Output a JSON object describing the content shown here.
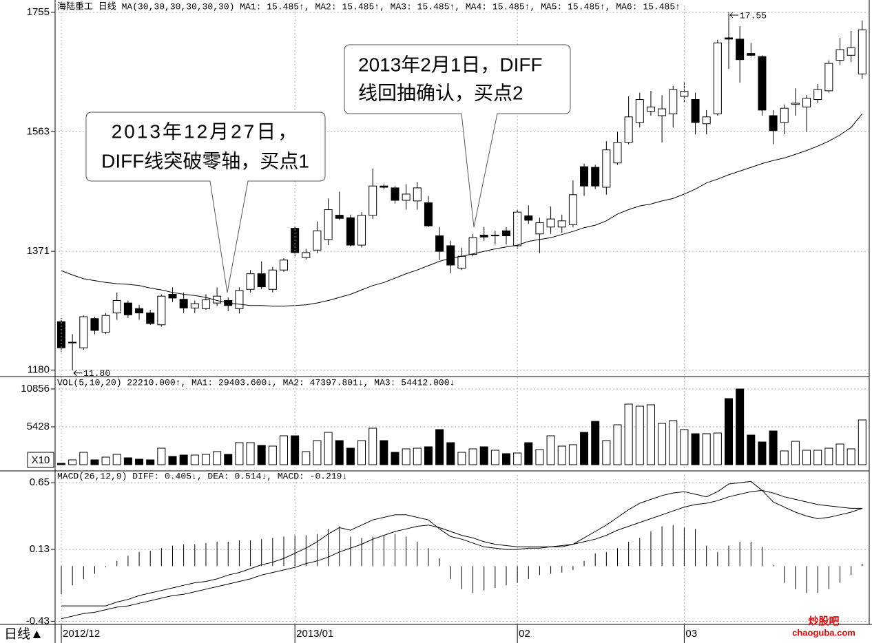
{
  "chart_data": [
    {
      "type": "candlestick",
      "header": "海陆重工 日线 MA(30,30,30,30,30,30) MA1: 15.485↑, MA2: 15.485↑, MA3: 15.485↑, MA4: 15.485↑, MA5: 15.485↑, MA6: 15.485↑",
      "categories": [
        "2012/12",
        null,
        null,
        null,
        null,
        null,
        null,
        null,
        null,
        null,
        null,
        null,
        null,
        null,
        null,
        null,
        null,
        null,
        null,
        null,
        null,
        "2013/01",
        null,
        null,
        null,
        null,
        null,
        null,
        null,
        null,
        null,
        null,
        null,
        null,
        null,
        null,
        null,
        null,
        null,
        null,
        null,
        "02",
        null,
        null,
        null,
        null,
        null,
        null,
        null,
        null,
        null,
        null,
        null,
        null,
        null,
        null,
        "03",
        null,
        null,
        null,
        null,
        null,
        null,
        null,
        null,
        null,
        null,
        null,
        null,
        null,
        null,
        null,
        null
      ],
      "open": [
        1258,
        1225,
        1216,
        1263,
        1241,
        1272,
        1288,
        1279,
        1272,
        1253,
        1302,
        1294,
        1280,
        1279,
        1288,
        1292,
        1279,
        1310,
        1335,
        1310,
        1341,
        1408,
        1361,
        1373,
        1390,
        1429,
        1425,
        1381,
        1429,
        1476,
        1473,
        1453,
        1452,
        1449,
        1396,
        1380,
        1344,
        1366,
        1397,
        1397,
        1404,
        1380,
        1428,
        1399,
        1410,
        1410,
        1414,
        1507,
        1506,
        1474,
        1513,
        1546,
        1578,
        1596,
        1589,
        1592,
        1620,
        1615,
        1576,
        1592,
        1714,
        1712,
        1689,
        1684,
        1589,
        1578,
        1607,
        1603,
        1615,
        1629,
        1678,
        1686,
        1656
      ],
      "high": [
        1264,
        1238,
        1268,
        1266,
        1272,
        1305,
        1292,
        1285,
        1277,
        1302,
        1313,
        1305,
        1292,
        1302,
        1313,
        1297,
        1313,
        1341,
        1355,
        1346,
        1360,
        1412,
        1375,
        1419,
        1456,
        1467,
        1430,
        1434,
        1504,
        1479,
        1476,
        1479,
        1482,
        1460,
        1410,
        1388,
        1377,
        1399,
        1410,
        1404,
        1410,
        1438,
        1445,
        1425,
        1443,
        1430,
        1485,
        1512,
        1510,
        1548,
        1563,
        1620,
        1626,
        1629,
        1622,
        1637,
        1644,
        1626,
        1598,
        1711,
        1755,
        1733,
        1706,
        1686,
        1598,
        1607,
        1633,
        1622,
        1640,
        1678,
        1714,
        1725,
        1742
      ],
      "low": [
        1209,
        1180,
        1213,
        1238,
        1238,
        1261,
        1264,
        1261,
        1253,
        1250,
        1290,
        1272,
        1272,
        1277,
        1283,
        1275,
        1271,
        1305,
        1310,
        1305,
        1338,
        1363,
        1358,
        1368,
        1381,
        1421,
        1379,
        1377,
        1423,
        1471,
        1448,
        1438,
        1438,
        1410,
        1357,
        1336,
        1341,
        1363,
        1388,
        1382,
        1382,
        1375,
        1415,
        1368,
        1399,
        1401,
        1410,
        1460,
        1471,
        1462,
        1510,
        1543,
        1570,
        1589,
        1546,
        1570,
        1611,
        1559,
        1559,
        1589,
        1664,
        1642,
        1684,
        1589,
        1543,
        1559,
        1589,
        1563,
        1609,
        1626,
        1670,
        1675,
        1648
      ],
      "close": [
        1216,
        1225,
        1266,
        1244,
        1268,
        1292,
        1269,
        1272,
        1255,
        1299,
        1296,
        1280,
        1287,
        1293,
        1299,
        1284,
        1308,
        1335,
        1314,
        1341,
        1357,
        1369,
        1369,
        1404,
        1438,
        1424,
        1381,
        1429,
        1476,
        1474,
        1453,
        1463,
        1473,
        1412,
        1371,
        1349,
        1363,
        1393,
        1394,
        1397,
        1396,
        1434,
        1421,
        1417,
        1423,
        1420,
        1462,
        1476,
        1476,
        1534,
        1546,
        1587,
        1615,
        1603,
        1600,
        1631,
        1628,
        1578,
        1587,
        1706,
        1712,
        1679,
        1686,
        1598,
        1565,
        1601,
        1609,
        1617,
        1631,
        1673,
        1695,
        1698,
        1727
      ],
      "up_color": "#ffffff",
      "down_color": "#000000",
      "ma": {
        "color": "#000000",
        "values": [
          1340,
          1333,
          1327,
          1324,
          1321,
          1319,
          1318,
          1316,
          1312,
          1309,
          1305,
          1302,
          1300,
          1297,
          1292,
          1288,
          1286,
          1284,
          1284,
          1283,
          1283,
          1284,
          1285,
          1288,
          1292,
          1297,
          1302,
          1309,
          1316,
          1321,
          1328,
          1335,
          1341,
          1348,
          1355,
          1360,
          1363,
          1367,
          1371,
          1375,
          1378,
          1381,
          1387,
          1390,
          1393,
          1398,
          1403,
          1409,
          1413,
          1420,
          1431,
          1438,
          1444,
          1447,
          1452,
          1456,
          1463,
          1471,
          1481,
          1487,
          1494,
          1500,
          1506,
          1512,
          1517,
          1521,
          1527,
          1533,
          1540,
          1548,
          1558,
          1570,
          1592
        ]
      },
      "ylim": [
        1172,
        1766
      ],
      "yticks": [
        1180,
        1371,
        1563,
        1755
      ],
      "grid": true,
      "annotations": [
        {
          "label": "17.55",
          "index": 60,
          "value": 1755
        },
        {
          "label": "11.80",
          "index": 1,
          "value": 1180
        }
      ],
      "callouts": [
        {
          "lines": [
            "2013年12月27日，",
            "DIFF线突破零轴，买点1"
          ]
        },
        {
          "lines": [
            "2013年2月1日，DIFF",
            "线回抽确认，买点2"
          ]
        }
      ]
    },
    {
      "type": "volume",
      "header": "VOL(5,10,20) 22210.000↑, MA1: 29403.600↓, MA2: 47397.801↓, MA3: 54412.000↓",
      "multiplier": "X10",
      "values": [
        197,
        691,
        1777,
        691,
        1086,
        1481,
        987,
        790,
        691,
        2369,
        1184,
        1382,
        1382,
        1481,
        1875,
        1481,
        3158,
        3158,
        2764,
        2666,
        4145,
        4145,
        1875,
        3455,
        4639,
        3455,
        2369,
        3455,
        5231,
        3455,
        1777,
        2270,
        2369,
        2566,
        5034,
        3158,
        1777,
        2270,
        2566,
        2073,
        1579,
        1678,
        3158,
        2171,
        4145,
        2665,
        2862,
        4639,
        6218,
        3455,
        5725,
        8686,
        8390,
        8587,
        5922,
        6317,
        5034,
        4442,
        4442,
        4540,
        9475,
        10857,
        4244,
        3257,
        4836,
        1974,
        3356,
        2073,
        2073,
        2369,
        2961,
        2270,
        6416
      ],
      "ylim": [
        -790,
        12535
      ],
      "yticks": [
        5428,
        10856
      ],
      "grid": true
    },
    {
      "type": "macd",
      "header": "MACD(26,12,9) DIFF: 0.405↓, DEA: 0.514↓, MACD: -0.219↓",
      "diff": [
        -0.31,
        -0.31,
        -0.31,
        -0.31,
        -0.31,
        -0.28,
        -0.26,
        -0.23,
        -0.21,
        -0.19,
        -0.17,
        -0.15,
        -0.13,
        -0.12,
        -0.1,
        -0.07,
        -0.05,
        -0.02,
        0.01,
        0.03,
        0.06,
        0.1,
        0.14,
        0.19,
        0.25,
        0.3,
        0.28,
        0.32,
        0.36,
        0.38,
        0.4,
        0.4,
        0.38,
        0.36,
        0.29,
        0.23,
        0.21,
        0.18,
        0.15,
        0.14,
        0.13,
        0.13,
        0.14,
        0.14,
        0.15,
        0.15,
        0.17,
        0.22,
        0.27,
        0.32,
        0.38,
        0.44,
        0.49,
        0.52,
        0.55,
        0.57,
        0.58,
        0.56,
        0.54,
        0.58,
        0.64,
        0.65,
        0.66,
        0.59,
        0.5,
        0.46,
        0.42,
        0.39,
        0.37,
        0.38,
        0.4,
        0.42,
        0.45
      ],
      "dea": [
        -0.41,
        -0.39,
        -0.37,
        -0.36,
        -0.34,
        -0.32,
        -0.31,
        -0.29,
        -0.27,
        -0.25,
        -0.23,
        -0.22,
        -0.2,
        -0.18,
        -0.16,
        -0.14,
        -0.12,
        -0.1,
        -0.07,
        -0.05,
        -0.03,
        -0.01,
        0.02,
        0.04,
        0.07,
        0.11,
        0.14,
        0.17,
        0.21,
        0.24,
        0.27,
        0.29,
        0.31,
        0.32,
        0.3,
        0.27,
        0.24,
        0.22,
        0.19,
        0.17,
        0.16,
        0.15,
        0.15,
        0.15,
        0.15,
        0.16,
        0.17,
        0.19,
        0.21,
        0.24,
        0.28,
        0.31,
        0.34,
        0.37,
        0.4,
        0.43,
        0.46,
        0.48,
        0.49,
        0.51,
        0.54,
        0.56,
        0.58,
        0.59,
        0.57,
        0.54,
        0.52,
        0.5,
        0.48,
        0.47,
        0.46,
        0.45,
        0.45
      ],
      "macd": [
        -0.22,
        -0.15,
        -0.1,
        -0.06,
        -0.01,
        0.04,
        0.08,
        0.11,
        0.12,
        0.14,
        0.16,
        0.17,
        0.17,
        0.18,
        0.19,
        0.19,
        0.2,
        0.2,
        0.21,
        0.22,
        0.23,
        0.24,
        0.24,
        0.25,
        0.29,
        0.31,
        0.23,
        0.22,
        0.23,
        0.24,
        0.25,
        0.23,
        0.19,
        0.14,
        0.06,
        -0.1,
        -0.18,
        -0.21,
        -0.19,
        -0.17,
        -0.15,
        -0.13,
        -0.1,
        -0.07,
        -0.06,
        -0.05,
        -0.03,
        0.04,
        0.1,
        0.11,
        0.14,
        0.19,
        0.22,
        0.27,
        0.31,
        0.32,
        0.3,
        0.29,
        0.16,
        0.11,
        0.16,
        0.19,
        0.19,
        0.15,
        0.01,
        -0.13,
        -0.18,
        -0.21,
        -0.21,
        -0.18,
        -0.13,
        -0.07,
        0.02
      ],
      "ylim": [
        -0.46,
        0.71
      ],
      "yticks": [
        -0.43,
        0.13,
        0.65
      ],
      "grid": true
    }
  ],
  "footer": {
    "period": "日线▲",
    "watermark": [
      "炒股吧",
      "chaoguba.com"
    ]
  }
}
